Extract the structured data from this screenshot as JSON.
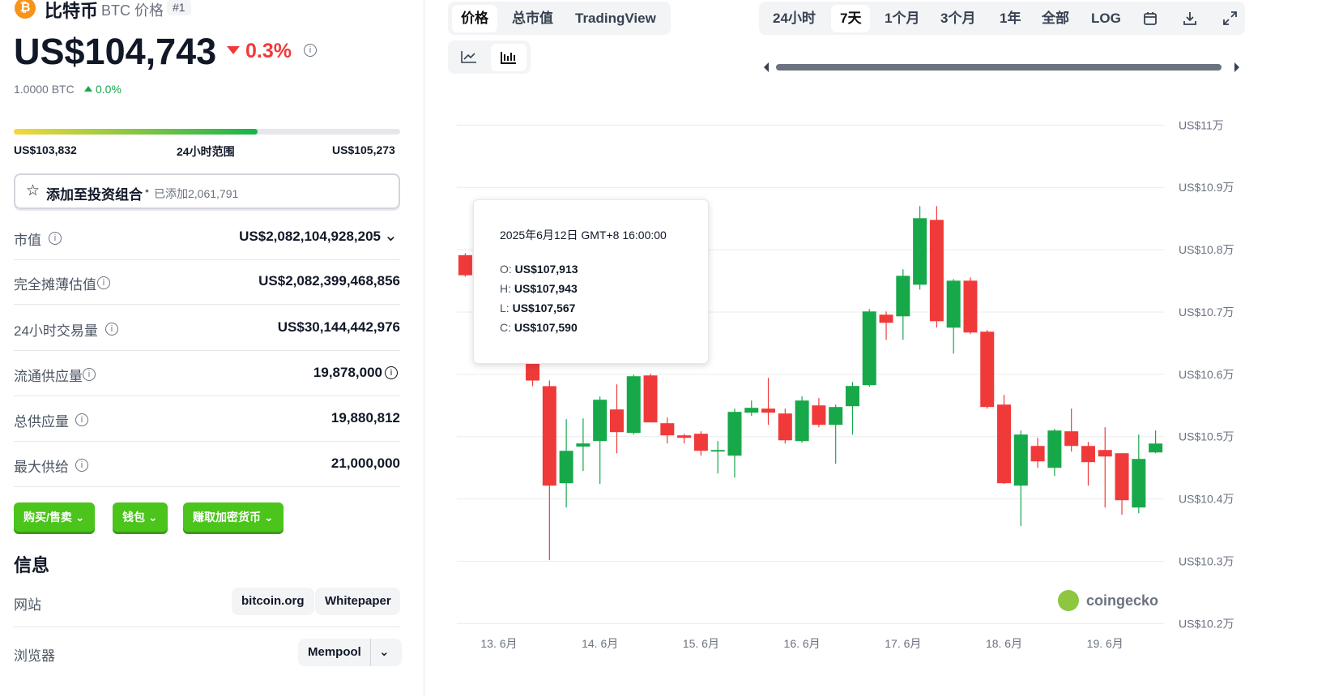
{
  "header": {
    "name": "比特币",
    "symbol": "BTC 价格",
    "rank": "#1"
  },
  "price": {
    "value": "US$104,743",
    "change": "0.3%",
    "btc": "1.0000 BTC",
    "btc_change": "0.0%"
  },
  "range": {
    "low": "US$103,832",
    "label": "24小时范围",
    "high": "US$105,273"
  },
  "portfolio": {
    "button": "添加至投资组合",
    "added": "已添加2,061,791"
  },
  "stats": [
    {
      "label": "市值",
      "value": "US$2,082,104,928,205"
    },
    {
      "label": "完全摊薄估值",
      "value": "US$2,082,399,468,856"
    },
    {
      "label": "24小时交易量",
      "value": "US$30,144,442,976"
    },
    {
      "label": "流通供应量",
      "value": "19,878,000"
    },
    {
      "label": "总供应量",
      "value": "19,880,812"
    },
    {
      "label": "最大供给",
      "value": "21,000,000"
    }
  ],
  "actions": [
    "购买/售卖",
    "钱包",
    "赚取加密货币"
  ],
  "info": {
    "title": "信息",
    "rows": [
      {
        "label": "网站",
        "links": [
          "bitcoin.org",
          "Whitepaper"
        ]
      },
      {
        "label": "浏览器",
        "links": [
          "Mempool"
        ]
      }
    ]
  },
  "chart_tabs": [
    "价格",
    "总市值",
    "TradingView"
  ],
  "ranges": [
    "24小时",
    "7天",
    "1个月",
    "3个月",
    "1年",
    "全部",
    "LOG"
  ],
  "watermark": "coingecko",
  "chart_data": {
    "type": "candlestick",
    "up_color": "#17a84a",
    "down_color": "#f03a3a",
    "categories": [
      null,
      null,
      "13. 6月",
      null,
      null,
      null,
      null,
      null,
      "14. 6月",
      null,
      null,
      null,
      null,
      null,
      "15. 6月",
      null,
      null,
      null,
      null,
      null,
      "16. 6月",
      null,
      null,
      null,
      null,
      null,
      "17. 6月",
      null,
      null,
      null,
      null,
      null,
      "18. 6月",
      null,
      null,
      null,
      null,
      null,
      "19. 6月",
      null,
      null,
      null
    ],
    "open": [
      107913,
      null,
      null,
      null,
      106300,
      105810,
      104252,
      104840,
      104929,
      105436,
      105059,
      105982,
      105215,
      105020,
      105046,
      104760,
      104694,
      105384,
      105449,
      105371,
      104928,
      105501,
      105189,
      105488,
      105826,
      106957,
      106931,
      107438,
      108479,
      106749,
      107503,
      106684,
      105514,
      104213,
      104850,
      104499,
      105085,
      104850,
      104785,
      104733,
      103862,
      104746
    ],
    "high": [
      107943,
      null,
      null,
      null,
      106350,
      105900,
      105280,
      105293,
      105644,
      105839,
      105995,
      106008,
      105306,
      105046,
      105085,
      104928,
      105449,
      105579,
      105943,
      105449,
      105644,
      105618,
      105514,
      105878,
      107048,
      107009,
      107685,
      108700,
      108700,
      107529,
      107555,
      106710,
      105670,
      105098,
      104980,
      105124,
      105449,
      104915,
      105150,
      104733,
      105033,
      105098
    ],
    "low": [
      107567,
      null,
      null,
      null,
      105810,
      103017,
      103862,
      104447,
      104239,
      104733,
      105033,
      105228,
      104889,
      104889,
      104694,
      104408,
      104343,
      105332,
      105189,
      104889,
      104902,
      105150,
      104564,
      105033,
      105800,
      106554,
      106554,
      107360,
      106749,
      106333,
      106645,
      105449,
      104239,
      103563,
      104499,
      104369,
      104759,
      104213,
      103862,
      103745,
      103771,
      104733
    ],
    "close": [
      107590,
      null,
      null,
      null,
      105900,
      104213,
      104772,
      104890,
      105592,
      105072,
      105969,
      105228,
      105020,
      104980,
      104772,
      104785,
      105397,
      105462,
      105384,
      104941,
      105579,
      105189,
      105475,
      105813,
      107009,
      106827,
      107581,
      108505,
      106853,
      107503,
      106671,
      105475,
      104252,
      105033,
      104603,
      105098,
      104850,
      104590,
      104681,
      103979,
      104642,
      104889
    ],
    "ylim": [
      101900,
      110200
    ],
    "yticks": [
      {
        "value": 102000,
        "label": "US$10.2万"
      },
      {
        "value": 103000,
        "label": "US$10.3万"
      },
      {
        "value": 104000,
        "label": "US$10.4万"
      },
      {
        "value": 105000,
        "label": "US$10.5万"
      },
      {
        "value": 106000,
        "label": "US$10.6万"
      },
      {
        "value": 107000,
        "label": "US$10.7万"
      },
      {
        "value": 108000,
        "label": "US$10.8万"
      },
      {
        "value": 109000,
        "label": "US$10.9万"
      },
      {
        "value": 110000,
        "label": "US$11万"
      }
    ],
    "grid": true,
    "tooltip": {
      "title": "2025年6月12日 GMT+8 16:00:00",
      "items": [
        {
          "label": "O:",
          "value": "US$107,913"
        },
        {
          "label": "H:",
          "value": "US$107,943"
        },
        {
          "label": "L:",
          "value": "US$107,567"
        },
        {
          "label": "C:",
          "value": "US$107,590"
        }
      ]
    }
  }
}
